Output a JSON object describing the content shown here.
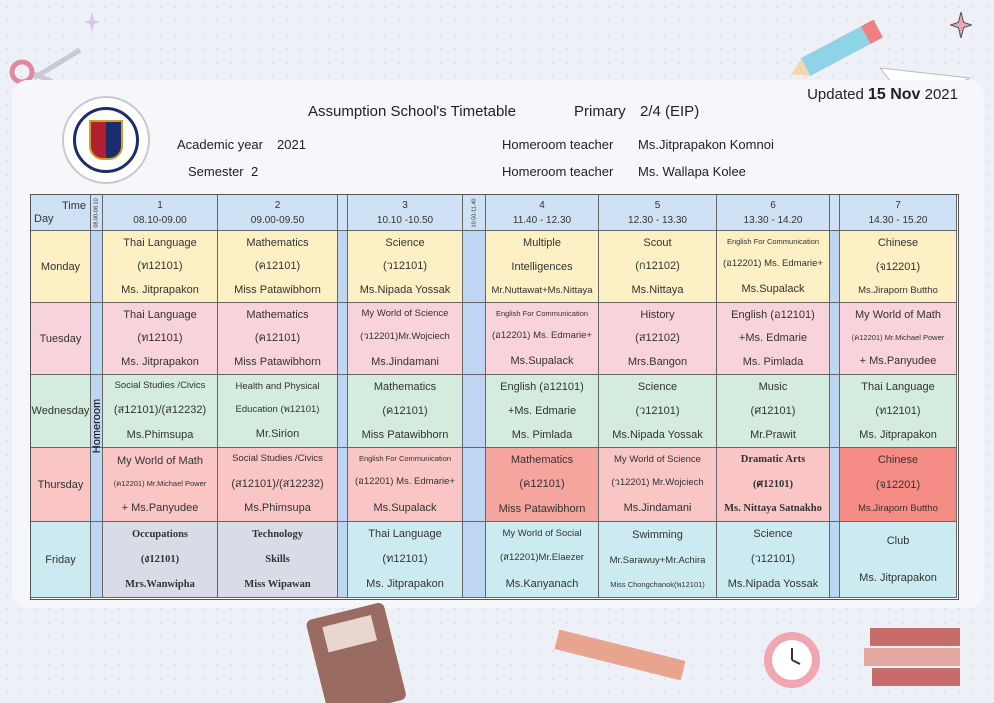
{
  "header": {
    "title": "Assumption School's Timetable",
    "level_label": "Primary",
    "class_name": "2/4 (EIP)",
    "academic_year_label": "Academic year",
    "academic_year": "2021",
    "semester_label": "Semester",
    "semester": "2",
    "homeroom_label": "Homeroom teacher",
    "homeroom_teacher_1": "Ms.Jitprapakon Komnoi",
    "homeroom_teacher_2": "Ms. Wallapa Kolee",
    "updated_label": "Updated",
    "updated_date": "15 Nov",
    "updated_year": "2021"
  },
  "table": {
    "time_label": "Time",
    "day_label": "Day",
    "morning_slot": "08.00-08.10",
    "lunch_slot": "10.50-11.40",
    "homeroom_label": "Homeroom",
    "periods": [
      {
        "num": "1",
        "time": "08.10-09.00"
      },
      {
        "num": "2",
        "time": "09.00-09.50"
      },
      {
        "num": "3",
        "time": "10.10 -10.50"
      },
      {
        "num": "4",
        "time": "11.40  -  12.30"
      },
      {
        "num": "5",
        "time": "12.30  -  13.30"
      },
      {
        "num": "6",
        "time": "13.30 - 14.20"
      },
      {
        "num": "7",
        "time": "14.30 - 15.20"
      }
    ],
    "days": [
      {
        "name": "Monday",
        "cells": [
          {
            "lines": [
              "Thai Language",
              "(ท12101)",
              "Ms. Jitprapakon"
            ]
          },
          {
            "lines": [
              "Mathematics",
              "(ค12101)",
              "Miss Patawibhorn"
            ]
          },
          {
            "lines": [
              "Science",
              "(ว12101)",
              "Ms.Nipada Yossak"
            ]
          },
          {
            "lines": [
              "Multiple",
              "Intelligences",
              "Mr.Nuttawat+Ms.Nittaya"
            ]
          },
          {
            "lines": [
              "Scout",
              "(ก12102)",
              "Ms.Nittaya"
            ]
          },
          {
            "lines": [
              "English For Communication",
              "(อ12201) Ms. Edmarie+",
              "Ms.Supalack"
            ]
          },
          {
            "lines": [
              "Chinese",
              "(จ12201)",
              "Ms.Jiraporn  Buttho"
            ]
          }
        ]
      },
      {
        "name": "Tuesday",
        "cells": [
          {
            "lines": [
              "Thai Language",
              "(ท12101)",
              "Ms. Jitprapakon"
            ]
          },
          {
            "lines": [
              "Mathematics",
              "(ค12101)",
              "Miss Patawibhorn"
            ]
          },
          {
            "lines": [
              "My World of Science",
              "(ว12201)Mr.Wojciech",
              "Ms.Jindamani"
            ]
          },
          {
            "lines": [
              "English For Communication",
              "(อ12201) Ms. Edmarie+",
              "Ms.Supalack"
            ]
          },
          {
            "lines": [
              "History",
              "(ส12102)",
              "Mrs.Bangon"
            ]
          },
          {
            "lines": [
              "English (อ12101)",
              "+Ms. Edmarie",
              "Ms. Pimlada"
            ]
          },
          {
            "lines": [
              "My World of Math",
              "(ค12201) Mr.Michael Power",
              "+ Ms.Panyudee"
            ]
          }
        ]
      },
      {
        "name": "Wednesday",
        "cells": [
          {
            "lines": [
              "Social Studies /Civics",
              "(ส12101)/(ส12232)",
              "Ms.Phimsupa"
            ]
          },
          {
            "lines": [
              "Health and Physical",
              "Education (พ12101)",
              "Mr.Sirion"
            ]
          },
          {
            "lines": [
              "Mathematics",
              "(ค12101)",
              "Miss Patawibhorn"
            ]
          },
          {
            "lines": [
              "English (อ12101)",
              "+Ms. Edmarie",
              "Ms. Pimlada"
            ]
          },
          {
            "lines": [
              "Science",
              "(ว12101)",
              "Ms.Nipada Yossak"
            ]
          },
          {
            "lines": [
              "Music",
              "(ศ12101)",
              "Mr.Prawit"
            ]
          },
          {
            "lines": [
              "Thai Language",
              "(ท12101)",
              "Ms. Jitprapakon"
            ]
          }
        ]
      },
      {
        "name": "Thursday",
        "cells": [
          {
            "lines": [
              "My World of Math",
              "(ค12201) Mr.Michael Power",
              "+ Ms.Panyudee"
            ]
          },
          {
            "lines": [
              "Social Studies /Civics",
              "(ส12101)/(ส12232)",
              "Ms.Phimsupa"
            ]
          },
          {
            "lines": [
              "English For Communication",
              "(อ12201) Ms. Edmarie+",
              "Ms.Supalack"
            ]
          },
          {
            "lines": [
              "Mathematics",
              "(ค12101)",
              "Miss Patawibhorn"
            ]
          },
          {
            "lines": [
              "My World of Science",
              "(ว12201) Mr.Wojciech",
              "Ms.Jindamani"
            ]
          },
          {
            "lines": [
              "Dramatic  Arts",
              "(ศ12101)",
              "Ms. Nittaya Satnakho"
            ]
          },
          {
            "lines": [
              "Chinese",
              "(จ12201)",
              "Ms.Jiraporn  Buttho"
            ]
          }
        ]
      },
      {
        "name": "Friday",
        "cells": [
          {
            "lines": [
              "Occupations",
              "(ง12101)",
              "Mrs.Wanwipha"
            ]
          },
          {
            "lines": [
              "Technology",
              "Skills",
              "Miss Wipawan"
            ]
          },
          {
            "lines": [
              "Thai Language",
              "(ท12101)",
              "Ms. Jitprapakon"
            ]
          },
          {
            "lines": [
              "My World of Social",
              "(ส12201)Mr.Elaezer",
              "Ms.Kanyanach"
            ]
          },
          {
            "lines": [
              "Swimming",
              "Mr.Sarawuy+Mr.Achira",
              "Miss Chongchanok(พ12101)"
            ]
          },
          {
            "lines": [
              "Science",
              "(ว12101)",
              "Ms.Nipada Yossak"
            ]
          },
          {
            "lines": [
              "Club",
              "Ms. Jitprapakon"
            ]
          }
        ]
      }
    ]
  },
  "colors": {
    "monday": "#fdf0c4",
    "tuesday": "#f9d3dc",
    "wednesday": "#d3ecde",
    "thursday": "#f9c6c5",
    "friday": "#ccebf1",
    "header": "#cfe1f5",
    "thursday_col5": "#f6a59e",
    "thursday_col7": "#f58d86",
    "friday_col1": "#d9dce6"
  }
}
